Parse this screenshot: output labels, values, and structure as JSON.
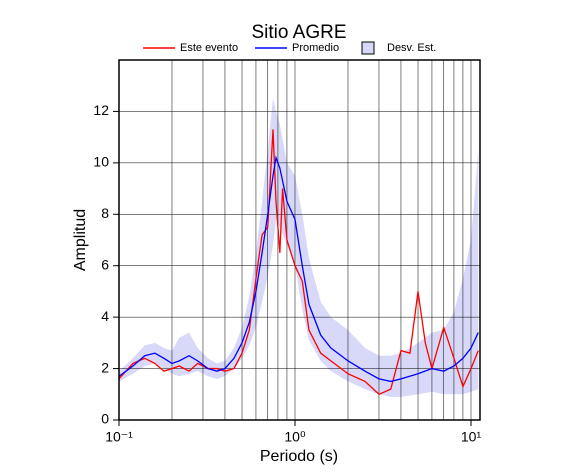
{
  "chart_data": {
    "type": "line",
    "title": "Sitio AGRE",
    "xlabel": "Periodo (s)",
    "ylabel": "Amplitud",
    "xscale": "log",
    "grid": true,
    "xlim": [
      0.1,
      11.25
    ],
    "ylim": [
      0,
      14
    ],
    "xticks": [
      {
        "value": 0.1,
        "label": "10⁻¹"
      },
      {
        "value": 1,
        "label": "10⁰"
      },
      {
        "value": 10,
        "label": "10¹"
      }
    ],
    "xminorticks": [
      0.2,
      0.3,
      0.4,
      0.5,
      0.6,
      0.7,
      0.8,
      0.9,
      2,
      3,
      4,
      5,
      6,
      7,
      8,
      9
    ],
    "yticks": [
      0,
      2,
      4,
      6,
      8,
      10,
      12
    ],
    "series": [
      {
        "name": "Este evento",
        "color": "#ff0000",
        "x": [
          0.1,
          0.12,
          0.14,
          0.16,
          0.18,
          0.2,
          0.22,
          0.25,
          0.28,
          0.32,
          0.36,
          0.4,
          0.45,
          0.5,
          0.55,
          0.6,
          0.65,
          0.7,
          0.75,
          0.78,
          0.82,
          0.85,
          0.9,
          1.0,
          1.1,
          1.2,
          1.4,
          1.6,
          2.0,
          2.5,
          3.0,
          3.5,
          4.0,
          4.5,
          5.0,
          5.5,
          6.0,
          7.0,
          8.0,
          9.0,
          10,
          11
        ],
        "values": [
          1.6,
          2.2,
          2.4,
          2.2,
          1.9,
          2.0,
          2.1,
          1.9,
          2.2,
          2.0,
          2.0,
          1.9,
          2.0,
          2.6,
          3.5,
          5.5,
          7.2,
          7.5,
          11.3,
          8.5,
          6.5,
          9.0,
          7.0,
          6.0,
          5.4,
          3.5,
          2.6,
          2.3,
          1.8,
          1.5,
          1.0,
          1.2,
          2.7,
          2.6,
          5.0,
          3.0,
          2.0,
          3.6,
          2.4,
          1.3,
          2.0,
          2.7
        ]
      },
      {
        "name": "Promedio",
        "color": "#0000ff",
        "x": [
          0.1,
          0.12,
          0.14,
          0.16,
          0.18,
          0.2,
          0.22,
          0.25,
          0.28,
          0.32,
          0.36,
          0.4,
          0.45,
          0.5,
          0.55,
          0.6,
          0.65,
          0.7,
          0.75,
          0.78,
          0.82,
          0.9,
          1.0,
          1.1,
          1.2,
          1.4,
          1.6,
          2.0,
          2.5,
          3.0,
          3.5,
          4.0,
          5.0,
          6.0,
          7.0,
          8.0,
          9.0,
          10,
          11
        ],
        "values": [
          1.7,
          2.1,
          2.5,
          2.6,
          2.4,
          2.2,
          2.3,
          2.5,
          2.3,
          2.0,
          1.9,
          2.0,
          2.4,
          3.0,
          3.8,
          5.0,
          6.5,
          8.0,
          9.5,
          10.2,
          9.8,
          8.5,
          7.8,
          6.0,
          4.5,
          3.3,
          2.8,
          2.3,
          1.9,
          1.6,
          1.5,
          1.6,
          1.8,
          2.0,
          1.9,
          2.1,
          2.4,
          2.8,
          3.4
        ]
      },
      {
        "name": "Desv. Est.",
        "color": "#d8d8f8",
        "x": [
          0.1,
          0.12,
          0.14,
          0.16,
          0.18,
          0.2,
          0.22,
          0.25,
          0.28,
          0.32,
          0.36,
          0.4,
          0.45,
          0.5,
          0.55,
          0.6,
          0.65,
          0.7,
          0.75,
          0.78,
          0.82,
          0.9,
          1.0,
          1.1,
          1.2,
          1.4,
          1.6,
          2.0,
          2.5,
          3.0,
          3.5,
          4.0,
          5.0,
          6.0,
          7.0,
          8.0,
          9.0,
          10,
          11
        ],
        "lower": [
          1.5,
          1.8,
          2.1,
          2.2,
          2.0,
          1.8,
          1.7,
          1.8,
          1.9,
          1.7,
          1.6,
          1.7,
          2.0,
          2.4,
          2.9,
          3.6,
          4.6,
          5.6,
          6.8,
          7.8,
          7.5,
          6.8,
          6.0,
          4.3,
          3.1,
          2.3,
          1.9,
          1.5,
          1.2,
          1.0,
          0.9,
          0.9,
          1.0,
          1.1,
          1.0,
          1.0,
          1.0,
          1.1,
          1.2
        ],
        "upper": [
          1.9,
          2.4,
          2.9,
          3.0,
          2.8,
          2.7,
          3.2,
          3.4,
          2.8,
          2.4,
          2.2,
          2.3,
          2.8,
          3.6,
          4.8,
          6.5,
          8.5,
          10.5,
          12.5,
          12.0,
          11.5,
          10.0,
          9.5,
          8.0,
          6.3,
          4.6,
          4.0,
          3.5,
          2.8,
          2.5,
          2.5,
          2.6,
          3.0,
          3.4,
          3.5,
          4.2,
          5.5,
          7.0,
          10.5
        ]
      }
    ]
  }
}
